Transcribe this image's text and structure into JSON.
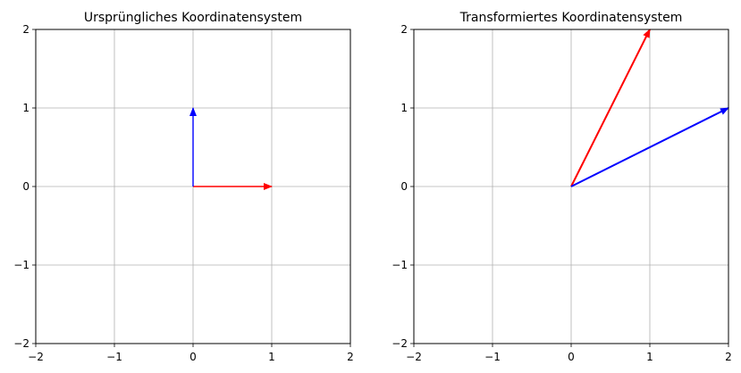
{
  "chart_data": [
    {
      "type": "vector",
      "title": "Ursprüngliches Koordinatensystem",
      "xlim": [
        -2,
        2
      ],
      "ylim": [
        -2,
        2
      ],
      "xticks": [
        -2,
        -1,
        0,
        1,
        2
      ],
      "yticks": [
        -2,
        -1,
        0,
        1,
        2
      ],
      "xtick_labels": [
        "−2",
        "−1",
        "0",
        "1",
        "2"
      ],
      "ytick_labels": [
        "−2",
        "−1",
        "0",
        "1",
        "2"
      ],
      "grid": true,
      "vectors": [
        {
          "origin": [
            0,
            0
          ],
          "end": [
            1,
            0
          ],
          "color": "#ff0000"
        },
        {
          "origin": [
            0,
            0
          ],
          "end": [
            0,
            1
          ],
          "color": "#0000ff"
        }
      ]
    },
    {
      "type": "vector",
      "title": "Transformiertes Koordinatensystem",
      "xlim": [
        -2,
        2
      ],
      "ylim": [
        -2,
        2
      ],
      "xticks": [
        -2,
        -1,
        0,
        1,
        2
      ],
      "yticks": [
        -2,
        -1,
        0,
        1,
        2
      ],
      "xtick_labels": [
        "−2",
        "−1",
        "0",
        "1",
        "2"
      ],
      "ytick_labels": [
        "−2",
        "−1",
        "0",
        "1",
        "2"
      ],
      "grid": true,
      "vectors": [
        {
          "origin": [
            0,
            0
          ],
          "end": [
            1,
            2
          ],
          "color": "#ff0000"
        },
        {
          "origin": [
            0,
            0
          ],
          "end": [
            2,
            1
          ],
          "color": "#0000ff"
        }
      ]
    }
  ]
}
